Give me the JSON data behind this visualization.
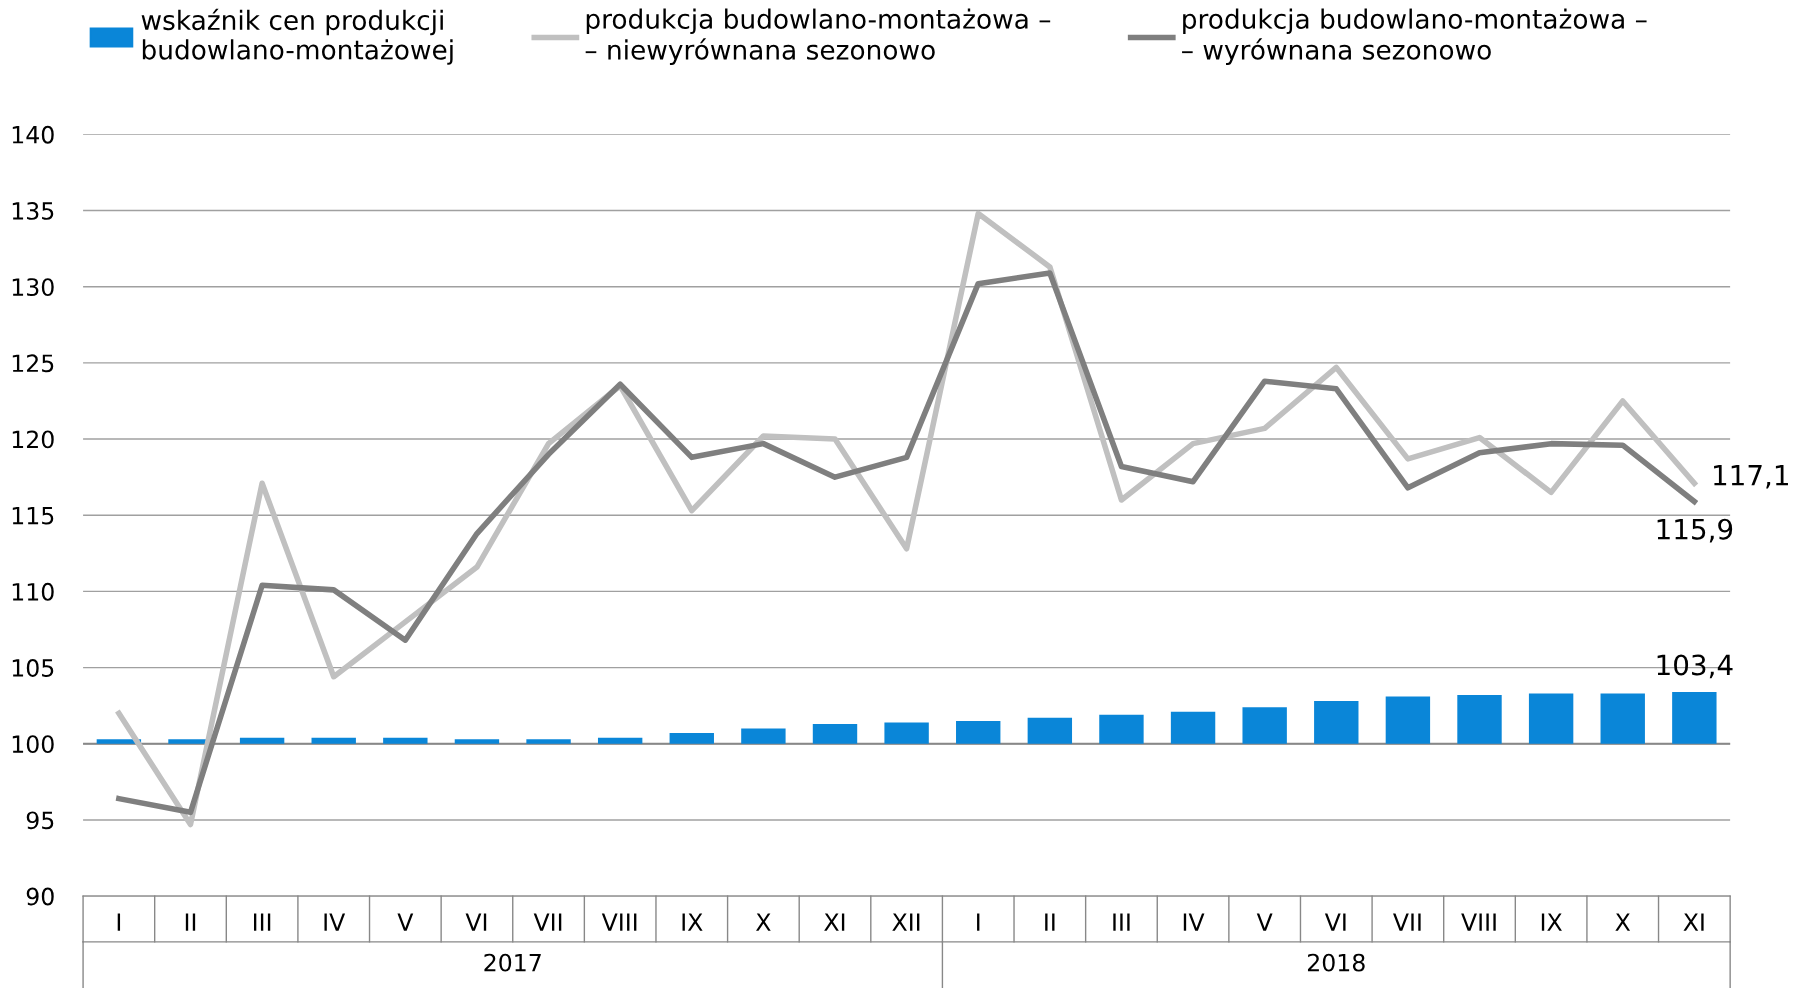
{
  "chart_data": {
    "type": "bar",
    "categories": [
      "I",
      "II",
      "III",
      "IV",
      "V",
      "VI",
      "VII",
      "VIII",
      "IX",
      "X",
      "XI",
      "XII",
      "I",
      "II",
      "III",
      "IV",
      "V",
      "VI",
      "VII",
      "VIII",
      "IX",
      "X",
      "XI"
    ],
    "ylim": [
      90,
      140
    ],
    "yticks": [
      90,
      95,
      100,
      105,
      110,
      115,
      120,
      125,
      130,
      135,
      140
    ],
    "grid": "y",
    "legend": "top",
    "ref_lines": [
      {
        "axis": "y",
        "value": 100,
        "color": "#888888"
      }
    ],
    "annotations": [
      "2017",
      "2018"
    ],
    "series": [
      {
        "name": "wskaźnik cen produkcji\nbudowlano-montażowej",
        "color": "#0a86d8",
        "base": [
          100,
          100,
          100,
          100,
          100,
          100,
          100,
          100,
          100,
          100,
          100,
          100,
          100,
          100,
          100,
          100,
          100,
          100,
          100,
          100,
          100,
          100,
          100
        ],
        "values": [
          0.3,
          0.3,
          0.4,
          0.4,
          0.4,
          0.3,
          0.3,
          0.4,
          0.7,
          1.0,
          1.3,
          1.4,
          1.5,
          1.7,
          1.9,
          2.1,
          2.4,
          2.8,
          3.1,
          3.2,
          3.3,
          3.3,
          3.4
        ],
        "value_labels": [
          null,
          null,
          null,
          null,
          null,
          null,
          null,
          null,
          null,
          null,
          null,
          null,
          null,
          null,
          null,
          null,
          null,
          null,
          null,
          null,
          null,
          null,
          "103,4"
        ]
      },
      {
        "name": "produkcja budowlano-montażowa –\n– niewyrównana sezonowo",
        "type": "line",
        "color": "#c0c0c0",
        "values": [
          102.0,
          94.7,
          117.1,
          104.4,
          108.0,
          111.6,
          119.7,
          123.5,
          115.3,
          120.2,
          120.0,
          112.8,
          134.8,
          131.3,
          116.0,
          119.7,
          120.7,
          124.7,
          118.7,
          120.1,
          116.5,
          122.5,
          117.1
        ],
        "value_labels": [
          null,
          null,
          null,
          null,
          null,
          null,
          null,
          null,
          null,
          null,
          null,
          null,
          null,
          null,
          null,
          null,
          null,
          null,
          null,
          null,
          null,
          null,
          "117,1"
        ]
      },
      {
        "name": "produkcja budowlano-montażowa –\n– wyrównana sezonowo",
        "type": "line",
        "color": "#7f7f7f",
        "values": [
          96.4,
          95.5,
          110.4,
          110.1,
          106.8,
          113.8,
          119.0,
          123.6,
          118.8,
          119.7,
          117.5,
          118.8,
          130.2,
          130.9,
          118.2,
          117.2,
          123.8,
          123.3,
          116.8,
          119.1,
          119.7,
          119.6,
          115.9
        ],
        "value_labels": [
          null,
          null,
          null,
          null,
          null,
          null,
          null,
          null,
          null,
          null,
          null,
          null,
          null,
          null,
          null,
          null,
          null,
          null,
          null,
          null,
          null,
          null,
          "115,9"
        ]
      }
    ]
  }
}
